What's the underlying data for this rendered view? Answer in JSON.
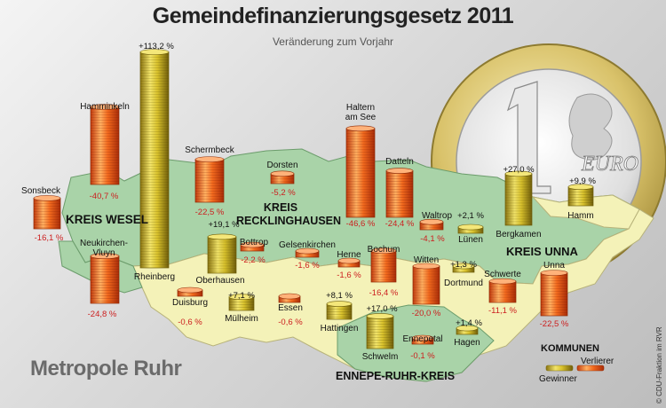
{
  "title": "Gemeindefinanzierungsgesetz 2011",
  "subtitle": "Veränderung zum Vorjahr",
  "brand": "Metropole Ruhr",
  "credit": "© CDU-Fraktion im RVR",
  "euro_text": "EURO",
  "regions": {
    "wesel": "KREIS WESEL",
    "recklinghausen_1": "KREIS",
    "recklinghausen_2": "RECKLINGHAUSEN",
    "unna": "KREIS UNNA",
    "ennepe": "ENNEPE-RUHR-KREIS"
  },
  "legend": {
    "title": "KOMMUNEN",
    "gainer": "Gewinner",
    "loser": "Verlierer"
  },
  "colors": {
    "gain": "#c7ae1a",
    "loss": "#e2561c",
    "map_green": "#a9d3a8",
    "map_yellow": "#f4f2b8",
    "loss_text": "#cc1f1f"
  },
  "chart_data": {
    "type": "bar",
    "title": "Gemeindefinanzierungsgesetz 2011",
    "subtitle": "Veränderung zum Vorjahr",
    "unit": "%",
    "series": [
      {
        "name": "Sonsbeck",
        "value": -16.1,
        "label": "-16,1 %"
      },
      {
        "name": "Hamminkeln",
        "value": -40.7,
        "label": "-40,7 %"
      },
      {
        "name": "Rheinberg",
        "value": 113.2,
        "label": "+113,2 %"
      },
      {
        "name": "Neukirchen-Vluyn",
        "value": -24.8,
        "label": "-24,8 %"
      },
      {
        "name": "Schermbeck",
        "value": -22.5,
        "label": "-22,5 %"
      },
      {
        "name": "Oberhausen",
        "value": 19.1,
        "label": "+19,1 %"
      },
      {
        "name": "Bottrop",
        "value": -2.2,
        "label": "-2,2 %"
      },
      {
        "name": "Dorsten",
        "value": -5.2,
        "label": "-5,2 %"
      },
      {
        "name": "Gelsenkirchen",
        "value": -1.6,
        "label": "-1,6 %"
      },
      {
        "name": "Herne",
        "value": -1.6,
        "label": "-1,6 %"
      },
      {
        "name": "Haltern am See",
        "value": -46.6,
        "label": "-46,6 %"
      },
      {
        "name": "Datteln",
        "value": -24.4,
        "label": "-24,4 %"
      },
      {
        "name": "Waltrop",
        "value": -4.1,
        "label": "-4,1 %"
      },
      {
        "name": "Lünen",
        "value": 2.1,
        "label": "+2,1 %"
      },
      {
        "name": "Bergkamen",
        "value": 27.0,
        "label": "+27,0 %"
      },
      {
        "name": "Hamm",
        "value": 9.9,
        "label": "+9,9 %"
      },
      {
        "name": "Duisburg",
        "value": -0.6,
        "label": "-0,6 %"
      },
      {
        "name": "Mülheim",
        "value": 7.1,
        "label": "+7,1 %"
      },
      {
        "name": "Essen",
        "value": -0.6,
        "label": "-0,6 %"
      },
      {
        "name": "Bochum",
        "value": -16.4,
        "label": "-16,4 %"
      },
      {
        "name": "Hattingen",
        "value": 8.1,
        "label": "+8,1 %"
      },
      {
        "name": "Witten",
        "value": -20.0,
        "label": "-20,0 %"
      },
      {
        "name": "Dortmund",
        "value": 1.3,
        "label": "+1,3 %"
      },
      {
        "name": "Schwerte",
        "value": -11.1,
        "label": "-11,1 %"
      },
      {
        "name": "Unna",
        "value": -22.5,
        "label": "-22,5 %"
      },
      {
        "name": "Schwelm",
        "value": 17.0,
        "label": "+17,0 %"
      },
      {
        "name": "Ennepetal",
        "value": -0.1,
        "label": "-0,1 %"
      },
      {
        "name": "Hagen",
        "value": 1.4,
        "label": "+1,4 %"
      }
    ]
  }
}
